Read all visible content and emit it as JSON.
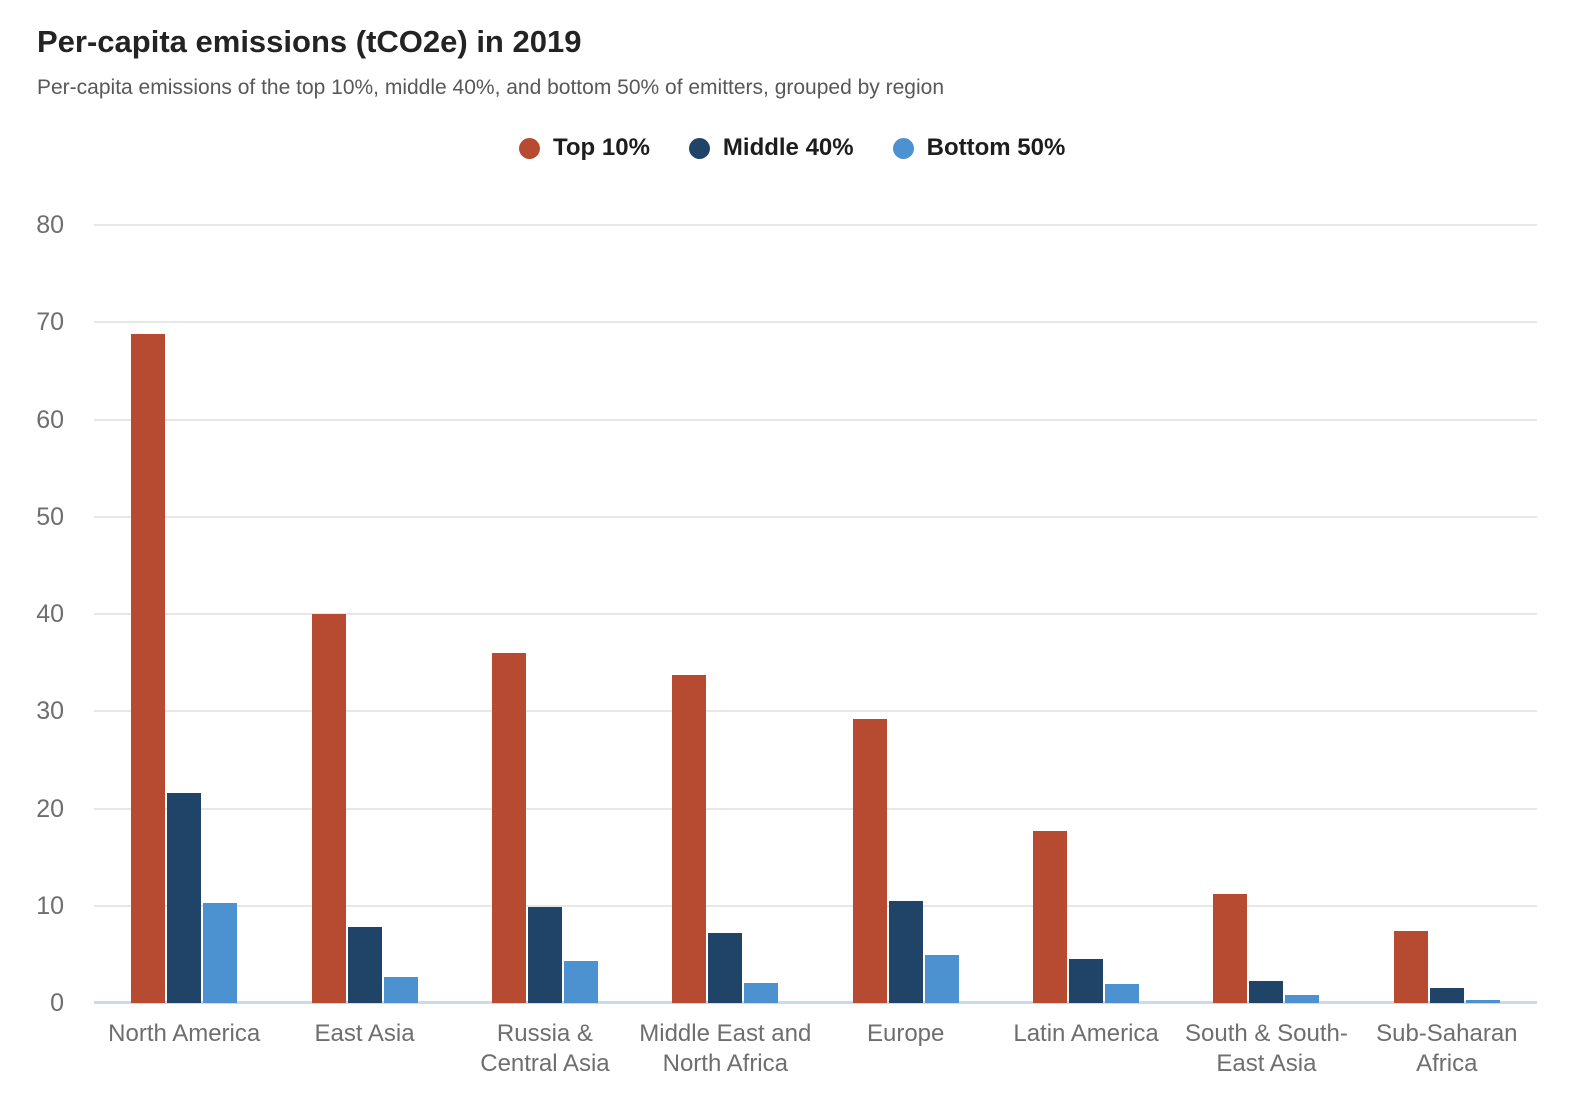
{
  "header": {
    "title": "Per-capita emissions (tCO2e) in 2019",
    "subtitle": "Per-capita emissions of the top 10%, middle 40%, and bottom 50% of emitters, grouped by region"
  },
  "colors": {
    "top10": "#b74b31",
    "middle40": "#1f4468",
    "bottom50": "#4c91d0",
    "gridline": "#e7e7e7",
    "baseline": "#ccd9e8",
    "axis_text": "#6e6e6e",
    "title_text": "#232323",
    "subtitle_text": "#585858"
  },
  "chart_data": {
    "type": "bar",
    "title": "Per-capita emissions (tCO2e) in 2019",
    "subtitle": "Per-capita emissions of the top 10%, middle 40%, and bottom 50% of emitters, grouped by region",
    "categories": [
      "North America",
      "East Asia",
      "Russia &\nCentral Asia",
      "Middle East and\nNorth Africa",
      "Europe",
      "Latin America",
      "South & South-\nEast Asia",
      "Sub-Saharan\nAfrica"
    ],
    "series": [
      {
        "name": "Top 10%",
        "color": "#b74b31",
        "values": [
          68.8,
          40.0,
          36.0,
          33.7,
          29.2,
          17.7,
          11.2,
          7.4
        ]
      },
      {
        "name": "Middle 40%",
        "color": "#1f4468",
        "values": [
          21.6,
          7.8,
          9.9,
          7.2,
          10.5,
          4.5,
          2.3,
          1.5
        ]
      },
      {
        "name": "Bottom 50%",
        "color": "#4c91d0",
        "values": [
          10.3,
          2.7,
          4.3,
          2.1,
          4.9,
          2.0,
          0.8,
          0.3
        ]
      }
    ],
    "xlabel": "",
    "ylabel": "",
    "ylim": [
      0,
      80
    ],
    "yticks": [
      0,
      10,
      20,
      30,
      40,
      50,
      60,
      70,
      80
    ],
    "grid": true,
    "legend_position": "top-center"
  }
}
